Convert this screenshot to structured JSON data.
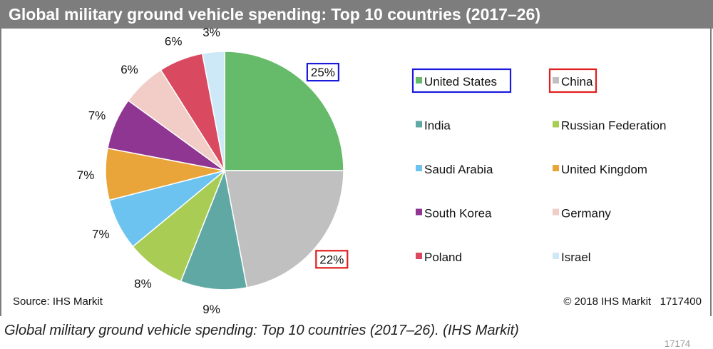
{
  "title": "Global military ground vehicle spending: Top 10 countries (2017–26)",
  "source": "Source: IHS Markit",
  "copyright": "© 2018 IHS Markit   1717400",
  "caption": "Global military ground vehicle spending: Top 10 countries (2017–26). (IHS Markit)",
  "bottom_fragment": "17174",
  "colors": {
    "banner": "#7d7d7d",
    "highlight_blue": "#1a1adb",
    "highlight_red": "#e01e1e"
  },
  "chart_data": {
    "type": "pie",
    "title": "Global military ground vehicle spending: Top 10 countries (2017–26)",
    "unit": "%",
    "legend_position": "right",
    "slices": [
      {
        "name": "United States",
        "value": 25,
        "label": "25%",
        "color": "#66bb6a",
        "highlight": "blue"
      },
      {
        "name": "China",
        "value": 22,
        "label": "22%",
        "color": "#c0c0c0",
        "highlight": "red"
      },
      {
        "name": "India",
        "value": 9,
        "label": "9%",
        "color": "#5fa8a4",
        "highlight": null
      },
      {
        "name": "Russian Federation",
        "value": 8,
        "label": "8%",
        "color": "#a9cc55",
        "highlight": null
      },
      {
        "name": "Saudi Arabia",
        "value": 7,
        "label": "7%",
        "color": "#6cc3f0",
        "highlight": null
      },
      {
        "name": "United Kingdom",
        "value": 7,
        "label": "7%",
        "color": "#e9a53a",
        "highlight": null
      },
      {
        "name": "South Korea",
        "value": 7,
        "label": "7%",
        "color": "#8e3691",
        "highlight": null
      },
      {
        "name": "Germany",
        "value": 6,
        "label": "6%",
        "color": "#f2ccc6",
        "highlight": null
      },
      {
        "name": "Poland",
        "value": 6,
        "label": "6%",
        "color": "#d9495f",
        "highlight": null
      },
      {
        "name": "Israel",
        "value": 3,
        "label": "3%",
        "color": "#cde9f8",
        "highlight": null
      }
    ]
  }
}
